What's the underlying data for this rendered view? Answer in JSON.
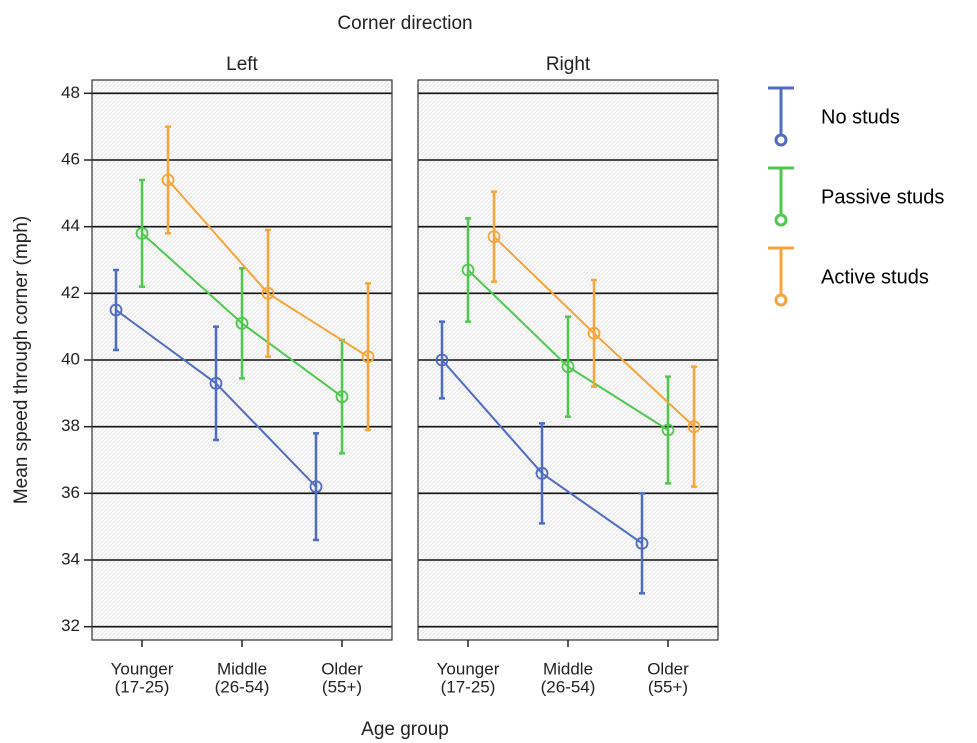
{
  "chart_data": {
    "type": "line",
    "title": "Corner direction",
    "x_label": "Age group",
    "y_label": "Mean speed through corner (mph)",
    "categories": [
      [
        "Younger",
        "(17-25)"
      ],
      [
        "Middle",
        "(26-54)"
      ],
      [
        "Older",
        "(55+)"
      ]
    ],
    "ylim": [
      31.6,
      48.4
    ],
    "yticks": [
      32,
      34,
      36,
      38,
      40,
      42,
      44,
      46,
      48
    ],
    "grid": true,
    "legend": "right",
    "panels": [
      {
        "title": "Left",
        "series": [
          {
            "name": "No studs",
            "color": "#4f6cc4",
            "values": [
              41.5,
              39.3,
              36.2
            ],
            "errors": [
              1.2,
              1.7,
              1.6
            ]
          },
          {
            "name": "Passive studs",
            "color": "#4ec94e",
            "values": [
              43.8,
              41.1,
              38.9
            ],
            "errors": [
              1.6,
              1.65,
              1.7
            ]
          },
          {
            "name": "Active studs",
            "color": "#f7a43a",
            "values": [
              45.4,
              42.0,
              40.1
            ],
            "errors": [
              1.6,
              1.9,
              2.2
            ]
          }
        ]
      },
      {
        "title": "Right",
        "series": [
          {
            "name": "No studs",
            "color": "#4f6cc4",
            "values": [
              40.0,
              36.6,
              34.5
            ],
            "errors": [
              1.15,
              1.5,
              1.5
            ]
          },
          {
            "name": "Passive studs",
            "color": "#4ec94e",
            "values": [
              42.7,
              39.8,
              37.9
            ],
            "errors": [
              1.55,
              1.5,
              1.6
            ]
          },
          {
            "name": "Active studs",
            "color": "#f7a43a",
            "values": [
              43.7,
              40.8,
              38.0
            ],
            "errors": [
              1.35,
              1.6,
              1.8
            ]
          }
        ]
      }
    ]
  }
}
